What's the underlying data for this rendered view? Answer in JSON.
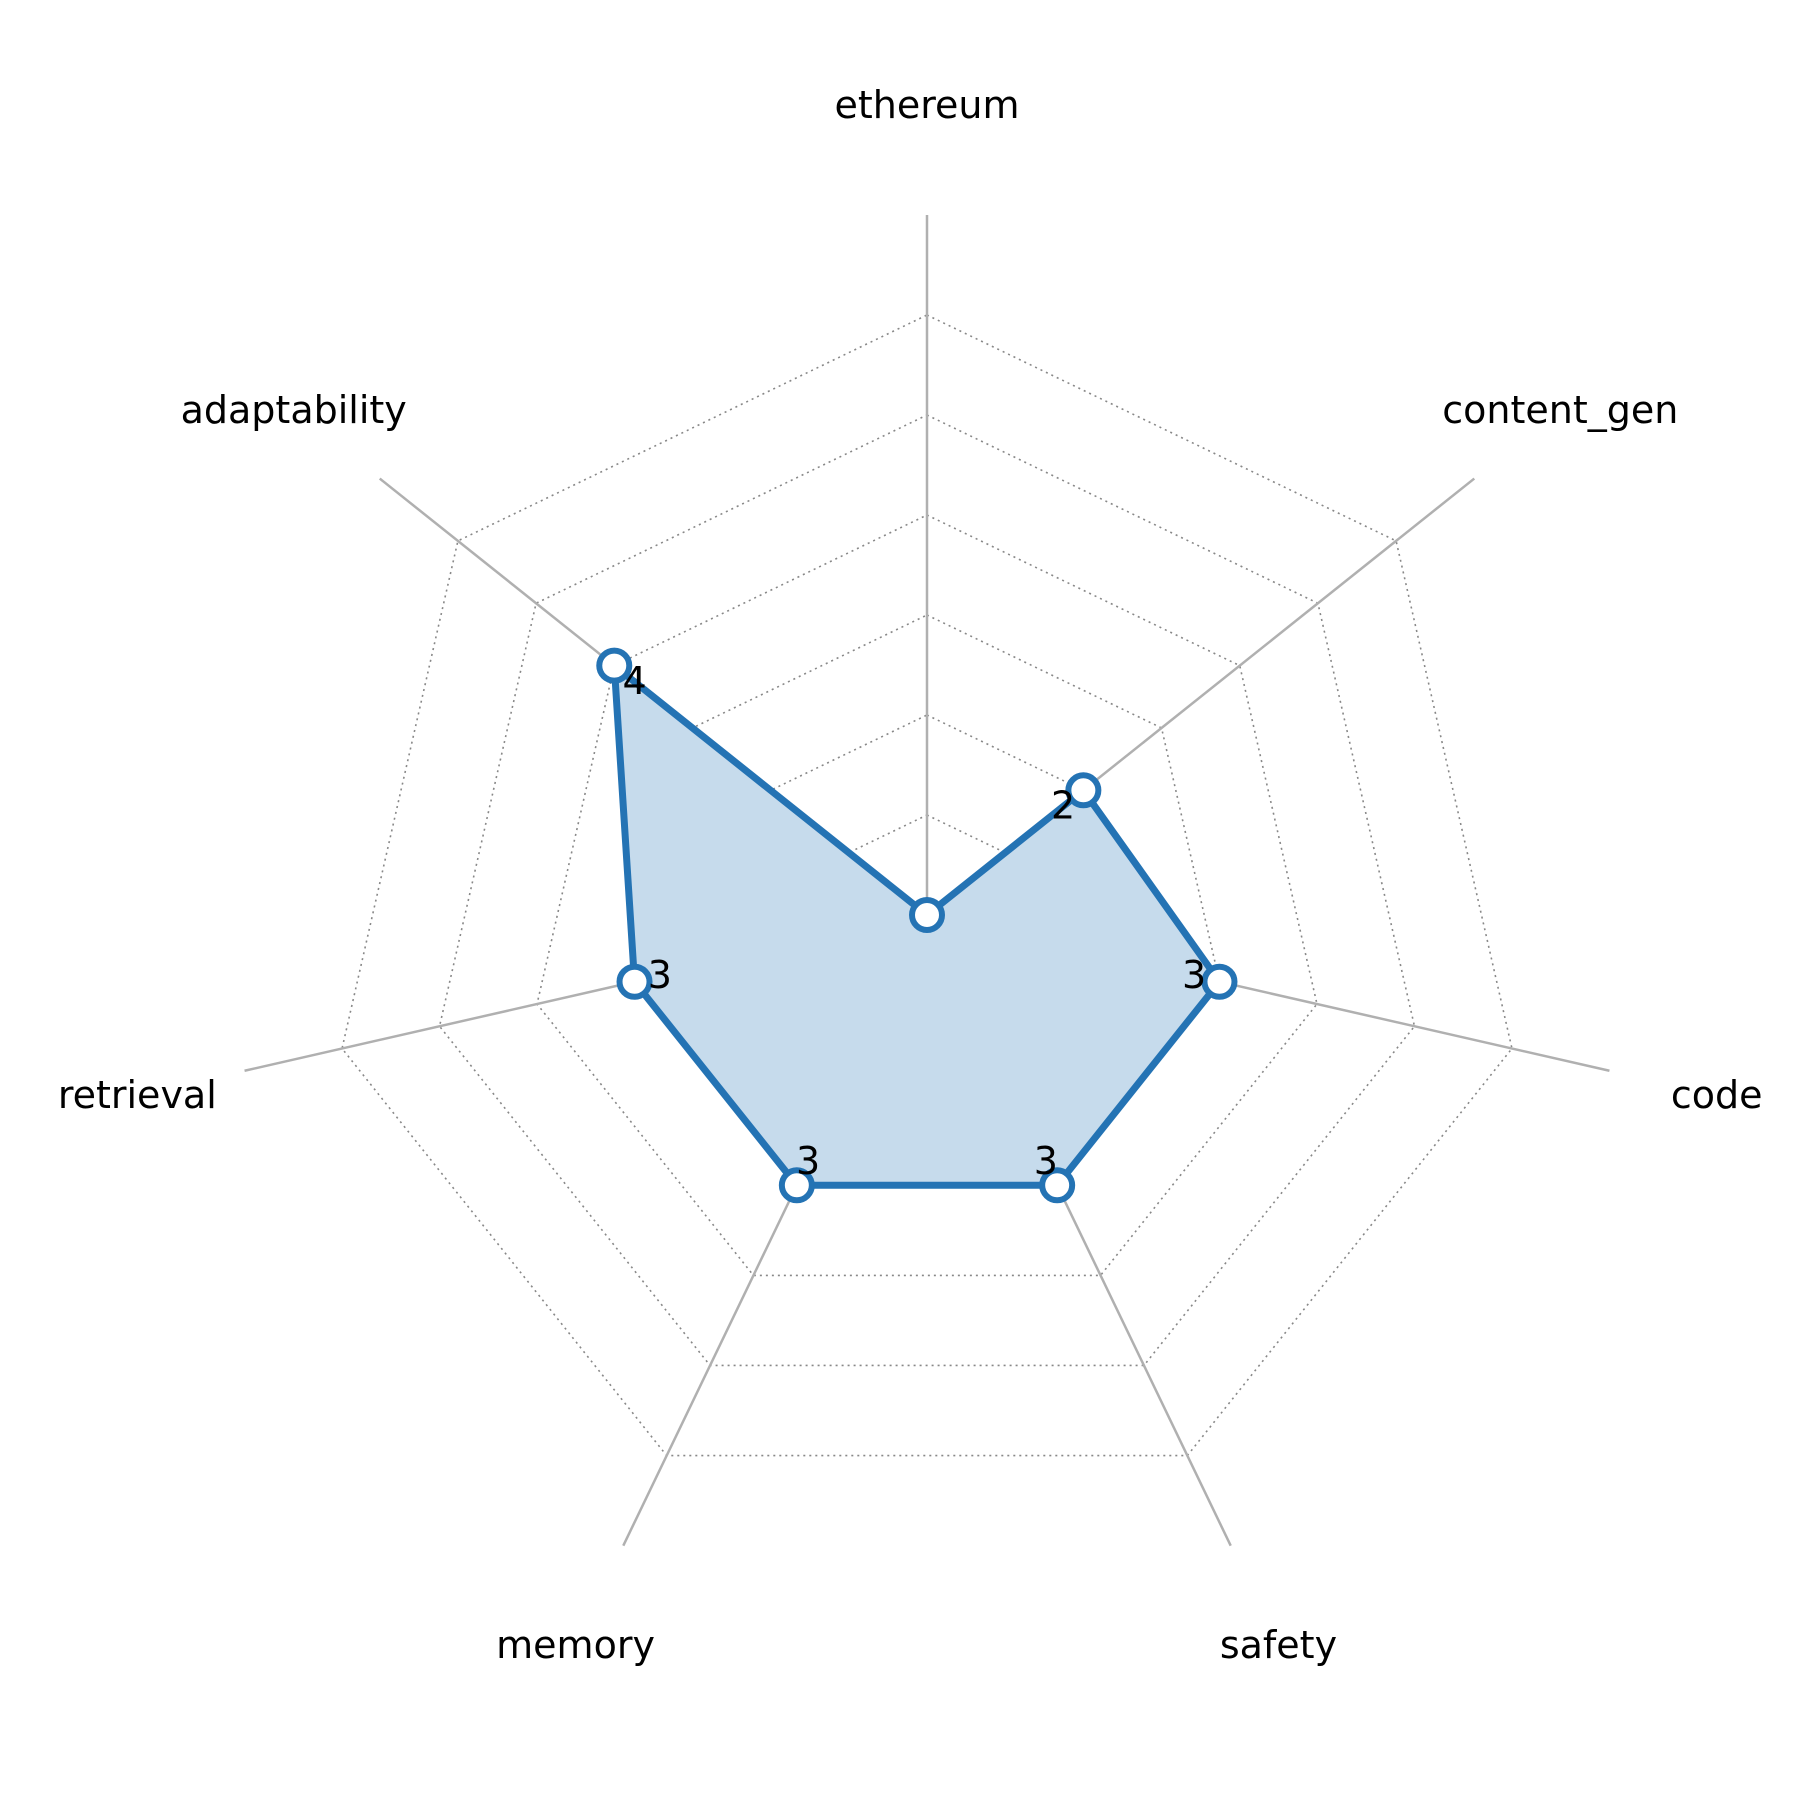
{
  "chart_data": {
    "type": "radar",
    "axes": [
      "ethereum",
      "content_gen",
      "code",
      "safety",
      "memory",
      "retrieval",
      "adaptability"
    ],
    "series": [
      {
        "values": [
          0,
          2,
          3,
          3,
          3,
          3,
          4
        ]
      }
    ],
    "value_labels": [
      "",
      "2",
      "3",
      "3",
      "3",
      "3",
      "4"
    ],
    "rlim": [
      0,
      7
    ],
    "grid_levels": [
      1,
      2,
      3,
      4,
      5,
      6
    ],
    "grid": true,
    "colors": {
      "line": "#2473b4",
      "fill": "#c6dbec",
      "marker_fill": "#ffffff",
      "spoke": "#b0b0b0",
      "grid": "#888888"
    }
  }
}
